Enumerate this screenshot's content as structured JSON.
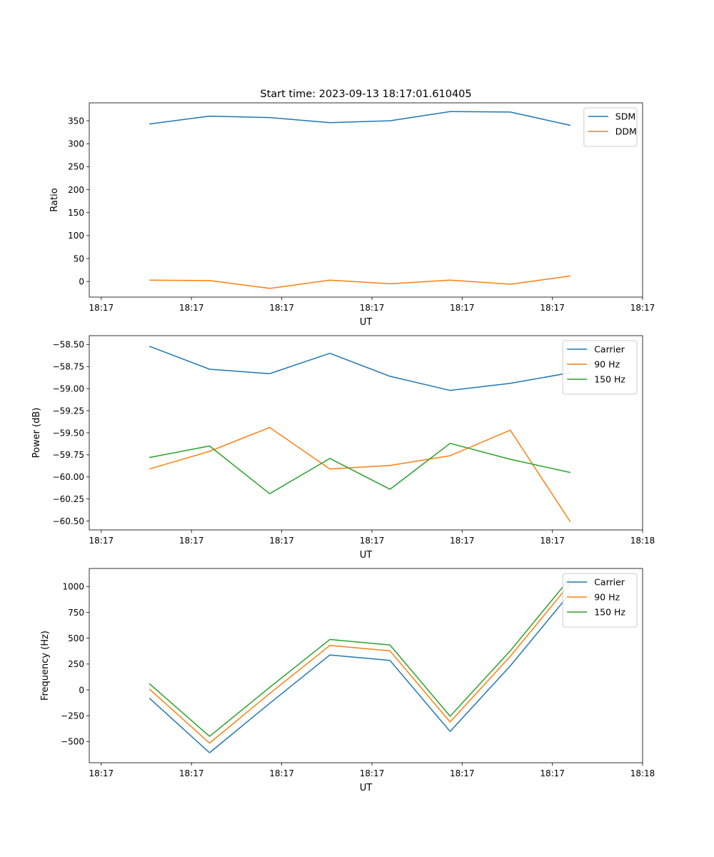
{
  "figure": {
    "title": "Start time: 2023-09-13 18:17:01.610405"
  },
  "chart_data": [
    {
      "type": "line",
      "title": "Start time: 2023-09-13 18:17:01.610405",
      "xlabel": "UT",
      "ylabel": "Ratio",
      "xlim": [
        0,
        9.2
      ],
      "ylim": [
        -34,
        389
      ],
      "x": [
        1,
        2,
        3,
        4,
        5,
        6,
        7,
        8
      ],
      "xticks": [
        0.2,
        1.7,
        3.2,
        4.7,
        6.2,
        7.7,
        9.2
      ],
      "xtick_labels": [
        "18:17",
        "18:17",
        "18:17",
        "18:17",
        "18:17",
        "18:17",
        "18:17"
      ],
      "yticks": [
        0,
        50,
        100,
        150,
        200,
        250,
        300,
        350
      ],
      "ytick_labels": [
        "0",
        "50",
        "100",
        "150",
        "200",
        "250",
        "300",
        "350"
      ],
      "series": [
        {
          "name": "SDM",
          "color": "#1f77b4",
          "values": [
            343,
            360,
            357,
            346,
            350,
            370,
            369,
            340
          ]
        },
        {
          "name": "DDM",
          "color": "#ff7f0e",
          "values": [
            3,
            2,
            -15,
            3,
            -5,
            3,
            -6,
            12
          ]
        }
      ],
      "legend": "top-right"
    },
    {
      "type": "line",
      "title": "",
      "xlabel": "UT",
      "ylabel": "Power (dB)",
      "xlim": [
        0,
        9.2
      ],
      "ylim": [
        -60.6,
        -58.4
      ],
      "x": [
        1,
        2,
        3,
        4,
        5,
        6,
        7,
        8
      ],
      "xticks": [
        0.2,
        1.7,
        3.2,
        4.7,
        6.2,
        7.7,
        9.2
      ],
      "xtick_labels": [
        "18:17",
        "18:17",
        "18:17",
        "18:17",
        "18:17",
        "18:17",
        "18:18"
      ],
      "yticks": [
        -60.5,
        -60.25,
        -60,
        -59.75,
        -59.5,
        -59.25,
        -59,
        -58.75,
        -58.5
      ],
      "ytick_labels": [
        "−60.50",
        "−60.25",
        "−60.00",
        "−59.75",
        "−59.50",
        "−59.25",
        "−59.00",
        "−58.75",
        "−58.50"
      ],
      "series": [
        {
          "name": "Carrier",
          "color": "#1f77b4",
          "values": [
            -58.52,
            -58.78,
            -58.83,
            -58.6,
            -58.86,
            -59.02,
            -58.94,
            -58.82
          ]
        },
        {
          "name": "90 Hz",
          "color": "#ff7f0e",
          "values": [
            -59.91,
            -59.71,
            -59.44,
            -59.91,
            -59.87,
            -59.76,
            -59.47,
            -60.51
          ]
        },
        {
          "name": "150 Hz",
          "color": "#2ca02c",
          "values": [
            -59.78,
            -59.65,
            -60.19,
            -59.79,
            -60.14,
            -59.62,
            -59.8,
            -59.95
          ]
        }
      ],
      "legend": "top-right"
    },
    {
      "type": "line",
      "title": "",
      "xlabel": "UT",
      "ylabel": "Frequency (Hz)",
      "xlim": [
        0,
        9.2
      ],
      "ylim": [
        -705,
        1175
      ],
      "x": [
        1,
        2,
        3,
        4,
        5,
        6,
        7,
        8
      ],
      "xticks": [
        0.2,
        1.7,
        3.2,
        4.7,
        6.2,
        7.7,
        9.2
      ],
      "xtick_labels": [
        "18:17",
        "18:17",
        "18:17",
        "18:17",
        "18:17",
        "18:17",
        "18:18"
      ],
      "yticks": [
        -500,
        -250,
        0,
        250,
        500,
        750,
        1000
      ],
      "ytick_labels": [
        "−500",
        "−250",
        "0",
        "250",
        "500",
        "750",
        "1000"
      ],
      "series": [
        {
          "name": "Carrier",
          "color": "#1f77b4",
          "values": [
            -80,
            -608,
            -130,
            338,
            285,
            -402,
            232,
            938
          ]
        },
        {
          "name": "90 Hz",
          "color": "#ff7f0e",
          "values": [
            8,
            -515,
            -35,
            430,
            378,
            -310,
            325,
            1032
          ]
        },
        {
          "name": "150 Hz",
          "color": "#2ca02c",
          "values": [
            60,
            -450,
            25,
            488,
            435,
            -255,
            378,
            1085
          ]
        }
      ],
      "legend": "top-right"
    }
  ]
}
